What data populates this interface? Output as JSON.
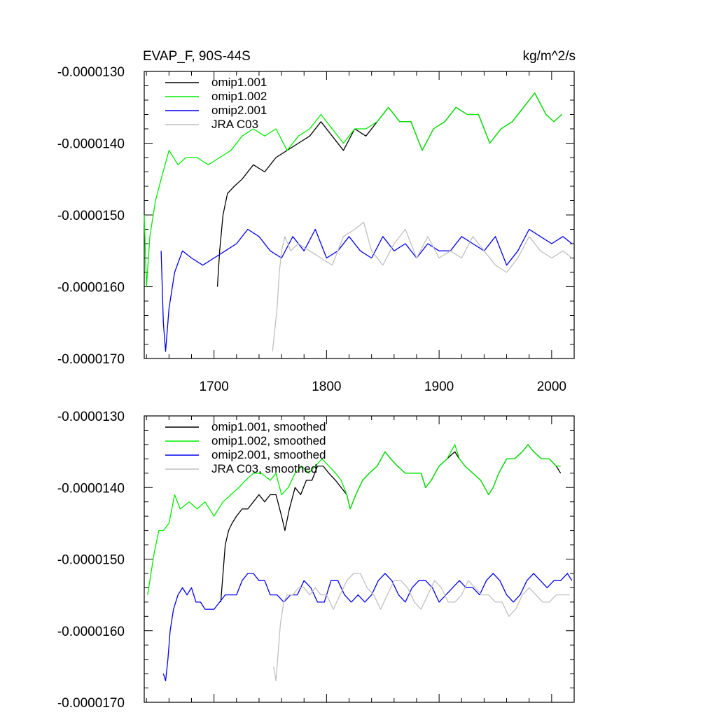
{
  "chart_data": [
    {
      "type": "line",
      "title": "EVAP_F, 90S-44S",
      "units": "kg/m^2/s",
      "ylim": [
        -1.7e-05,
        -1.3e-05
      ],
      "xlim": [
        1638,
        2020
      ],
      "y_ticks": [
        -1.3e-05,
        -1.4e-05,
        -1.5e-05,
        -1.6e-05,
        -1.7e-05
      ],
      "y_tick_labels": [
        "-0.0000130",
        "-0.0000140",
        "-0.0000150",
        "-0.0000160",
        "-0.0000170"
      ],
      "x_ticks": [
        1700,
        1800,
        1900,
        2000
      ],
      "x_tick_labels": [
        "1700",
        "1800",
        "1900",
        "2000"
      ],
      "legend_position": "top-left",
      "grid": false,
      "series": [
        {
          "name": "omip1.001",
          "color": "#000000",
          "x": [
            1703,
            1705,
            1708,
            1712,
            1718,
            1725,
            1735,
            1745,
            1755,
            1765,
            1775,
            1785,
            1795,
            1805,
            1815,
            1825,
            1835,
            1845,
            1855,
            1865,
            1875,
            1885,
            1895,
            1905,
            1915,
            1925,
            1935,
            1945,
            1955,
            1965,
            1975,
            1985,
            1995,
            2002,
            2009
          ],
          "y": [
            -1.6e-05,
            -1.55e-05,
            -1.5e-05,
            -1.47e-05,
            -1.46e-05,
            -1.45e-05,
            -1.43e-05,
            -1.44e-05,
            -1.42e-05,
            -1.41e-05,
            -1.4e-05,
            -1.39e-05,
            -1.37e-05,
            -1.39e-05,
            -1.41e-05,
            -1.38e-05,
            -1.39e-05,
            -1.37e-05,
            -1.35e-05,
            -1.37e-05,
            -1.37e-05,
            -1.41e-05,
            -1.38e-05,
            -1.37e-05,
            -1.35e-05,
            -1.36e-05,
            -1.36e-05,
            -1.4e-05,
            -1.38e-05,
            -1.37e-05,
            -1.35e-05,
            -1.33e-05,
            -1.36e-05,
            -1.37e-05,
            -1.36e-05
          ]
        },
        {
          "name": "omip1.002",
          "color": "#00ee00",
          "x": [
            1638,
            1640,
            1643,
            1648,
            1653,
            1660,
            1668,
            1675,
            1685,
            1695,
            1705,
            1715,
            1725,
            1735,
            1745,
            1755,
            1765,
            1775,
            1785,
            1795,
            1805,
            1815,
            1825,
            1835,
            1845,
            1855,
            1865,
            1875,
            1885,
            1895,
            1905,
            1915,
            1925,
            1935,
            1945,
            1955,
            1965,
            1975,
            1985,
            1995,
            2002,
            2009
          ],
          "y": [
            -1.5e-05,
            -1.6e-05,
            -1.53e-05,
            -1.48e-05,
            -1.45e-05,
            -1.41e-05,
            -1.43e-05,
            -1.42e-05,
            -1.42e-05,
            -1.43e-05,
            -1.42e-05,
            -1.41e-05,
            -1.39e-05,
            -1.38e-05,
            -1.39e-05,
            -1.38e-05,
            -1.41e-05,
            -1.39e-05,
            -1.38e-05,
            -1.36e-05,
            -1.38e-05,
            -1.4e-05,
            -1.38e-05,
            -1.38e-05,
            -1.37e-05,
            -1.35e-05,
            -1.37e-05,
            -1.37e-05,
            -1.41e-05,
            -1.38e-05,
            -1.37e-05,
            -1.35e-05,
            -1.36e-05,
            -1.36e-05,
            -1.4e-05,
            -1.38e-05,
            -1.37e-05,
            -1.35e-05,
            -1.33e-05,
            -1.36e-05,
            -1.37e-05,
            -1.36e-05
          ]
        },
        {
          "name": "omip2.001",
          "color": "#0000ee",
          "x": [
            1653,
            1655,
            1657,
            1660,
            1665,
            1672,
            1680,
            1690,
            1700,
            1710,
            1720,
            1730,
            1740,
            1750,
            1760,
            1770,
            1780,
            1790,
            1800,
            1810,
            1820,
            1830,
            1840,
            1850,
            1860,
            1870,
            1880,
            1890,
            1900,
            1910,
            1920,
            1930,
            1940,
            1950,
            1960,
            1970,
            1980,
            1990,
            2000,
            2010,
            2018
          ],
          "y": [
            -1.55e-05,
            -1.65e-05,
            -1.69e-05,
            -1.63e-05,
            -1.58e-05,
            -1.55e-05,
            -1.56e-05,
            -1.57e-05,
            -1.56e-05,
            -1.55e-05,
            -1.54e-05,
            -1.52e-05,
            -1.53e-05,
            -1.55e-05,
            -1.56e-05,
            -1.53e-05,
            -1.55e-05,
            -1.52e-05,
            -1.56e-05,
            -1.55e-05,
            -1.53e-05,
            -1.55e-05,
            -1.56e-05,
            -1.53e-05,
            -1.55e-05,
            -1.54e-05,
            -1.56e-05,
            -1.54e-05,
            -1.55e-05,
            -1.55e-05,
            -1.53e-05,
            -1.54e-05,
            -1.55e-05,
            -1.53e-05,
            -1.57e-05,
            -1.55e-05,
            -1.52e-05,
            -1.53e-05,
            -1.54e-05,
            -1.53e-05,
            -1.54e-05
          ]
        },
        {
          "name": "JRA C03",
          "color": "#c0c0c0",
          "x": [
            1752,
            1754,
            1756,
            1758,
            1760,
            1763,
            1768,
            1775,
            1785,
            1795,
            1805,
            1815,
            1825,
            1833,
            1840,
            1850,
            1860,
            1870,
            1880,
            1890,
            1900,
            1910,
            1920,
            1930,
            1940,
            1950,
            1960,
            1970,
            1980,
            1990,
            2000,
            2010,
            2018
          ],
          "y": [
            -1.69e-05,
            -1.66e-05,
            -1.63e-05,
            -1.58e-05,
            -1.55e-05,
            -1.53e-05,
            -1.55e-05,
            -1.54e-05,
            -1.55e-05,
            -1.56e-05,
            -1.57e-05,
            -1.53e-05,
            -1.52e-05,
            -1.51e-05,
            -1.55e-05,
            -1.57e-05,
            -1.54e-05,
            -1.52e-05,
            -1.56e-05,
            -1.53e-05,
            -1.56e-05,
            -1.55e-05,
            -1.56e-05,
            -1.53e-05,
            -1.55e-05,
            -1.57e-05,
            -1.58e-05,
            -1.56e-05,
            -1.53e-05,
            -1.55e-05,
            -1.56e-05,
            -1.55e-05,
            -1.56e-05
          ]
        }
      ]
    },
    {
      "type": "line",
      "title": "",
      "ylim": [
        -1.7e-05,
        -1.3e-05
      ],
      "xlim": [
        1638,
        2020
      ],
      "y_ticks": [
        -1.3e-05,
        -1.4e-05,
        -1.5e-05,
        -1.6e-05,
        -1.7e-05
      ],
      "y_tick_labels": [
        "-0.0000130",
        "-0.0000140",
        "-0.0000150",
        "-0.0000160",
        "-0.0000170"
      ],
      "x_ticks": [
        1700,
        1800,
        1900,
        2000
      ],
      "x_tick_labels": [],
      "legend_position": "top-left",
      "grid": false,
      "series": [
        {
          "name": "omip1.001, smoothed",
          "color": "#000000",
          "x": [
            1706,
            1708,
            1710,
            1713,
            1716,
            1720,
            1725,
            1730,
            1735,
            1740,
            1745,
            1750,
            1755,
            1760,
            1763,
            1767,
            1772,
            1777,
            1782,
            1787,
            1792,
            1797,
            1802,
            1808,
            1813,
            1818,
            1821,
            1826,
            1832,
            1838,
            1845,
            1852,
            1857,
            1863,
            1870,
            1877,
            1884,
            1888,
            1893,
            1900,
            1907,
            1914,
            1918,
            1923,
            1930,
            1937,
            1944,
            1948,
            1953,
            1960,
            1967,
            1974,
            1979,
            1984,
            1991,
            1998,
            2004,
            2008
          ],
          "y": [
            -1.56e-05,
            -1.52e-05,
            -1.48e-05,
            -1.46e-05,
            -1.45e-05,
            -1.44e-05,
            -1.43e-05,
            -1.43e-05,
            -1.42e-05,
            -1.41e-05,
            -1.42e-05,
            -1.41e-05,
            -1.41e-05,
            -1.44e-05,
            -1.46e-05,
            -1.43e-05,
            -1.4e-05,
            -1.41e-05,
            -1.39e-05,
            -1.39e-05,
            -1.37e-05,
            -1.37e-05,
            -1.38e-05,
            -1.39e-05,
            -1.4e-05,
            -1.41e-05,
            -1.43e-05,
            -1.41e-05,
            -1.39e-05,
            -1.38e-05,
            -1.37e-05,
            -1.35e-05,
            -1.36e-05,
            -1.37e-05,
            -1.38e-05,
            -1.38e-05,
            -1.38e-05,
            -1.4e-05,
            -1.39e-05,
            -1.37e-05,
            -1.36e-05,
            -1.35e-05,
            -1.36e-05,
            -1.37e-05,
            -1.38e-05,
            -1.39e-05,
            -1.41e-05,
            -1.4e-05,
            -1.38e-05,
            -1.36e-05,
            -1.36e-05,
            -1.35e-05,
            -1.34e-05,
            -1.35e-05,
            -1.36e-05,
            -1.36e-05,
            -1.37e-05,
            -1.38e-05
          ]
        },
        {
          "name": "omip1.002, smoothed",
          "color": "#00ee00",
          "x": [
            1641,
            1644,
            1647,
            1651,
            1655,
            1660,
            1665,
            1670,
            1678,
            1685,
            1692,
            1700,
            1708,
            1715,
            1722,
            1728,
            1735,
            1742,
            1750,
            1755,
            1760,
            1766,
            1772,
            1778,
            1784,
            1790,
            1796,
            1802,
            1808,
            1813,
            1818,
            1821,
            1826,
            1832,
            1838,
            1845,
            1852,
            1857,
            1863,
            1870,
            1877,
            1884,
            1888,
            1893,
            1900,
            1907,
            1914,
            1918,
            1923,
            1930,
            1937,
            1944,
            1948,
            1953,
            1960,
            1967,
            1974,
            1979,
            1984,
            1991,
            1998,
            2004,
            2008
          ],
          "y": [
            -1.55e-05,
            -1.52e-05,
            -1.49e-05,
            -1.46e-05,
            -1.46e-05,
            -1.45e-05,
            -1.41e-05,
            -1.43e-05,
            -1.42e-05,
            -1.43e-05,
            -1.42e-05,
            -1.44e-05,
            -1.42e-05,
            -1.41e-05,
            -1.4e-05,
            -1.39e-05,
            -1.38e-05,
            -1.38e-05,
            -1.39e-05,
            -1.38e-05,
            -1.41e-05,
            -1.4e-05,
            -1.38e-05,
            -1.37e-05,
            -1.38e-05,
            -1.37e-05,
            -1.36e-05,
            -1.37e-05,
            -1.38e-05,
            -1.39e-05,
            -1.41e-05,
            -1.43e-05,
            -1.41e-05,
            -1.39e-05,
            -1.38e-05,
            -1.37e-05,
            -1.35e-05,
            -1.36e-05,
            -1.37e-05,
            -1.38e-05,
            -1.38e-05,
            -1.38e-05,
            -1.4e-05,
            -1.39e-05,
            -1.37e-05,
            -1.36e-05,
            -1.34e-05,
            -1.36e-05,
            -1.37e-05,
            -1.38e-05,
            -1.39e-05,
            -1.41e-05,
            -1.4e-05,
            -1.38e-05,
            -1.36e-05,
            -1.36e-05,
            -1.35e-05,
            -1.34e-05,
            -1.35e-05,
            -1.36e-05,
            -1.36e-05,
            -1.37e-05,
            -1.37e-05
          ]
        },
        {
          "name": "omip2.001, smoothed",
          "color": "#0000ee",
          "x": [
            1655,
            1657,
            1659,
            1661,
            1664,
            1668,
            1672,
            1676,
            1680,
            1684,
            1688,
            1692,
            1696,
            1700,
            1705,
            1710,
            1715,
            1720,
            1725,
            1730,
            1735,
            1740,
            1745,
            1750,
            1756,
            1762,
            1768,
            1774,
            1780,
            1786,
            1792,
            1798,
            1804,
            1810,
            1816,
            1822,
            1828,
            1834,
            1840,
            1846,
            1852,
            1858,
            1864,
            1870,
            1876,
            1882,
            1888,
            1894,
            1900,
            1906,
            1912,
            1918,
            1924,
            1930,
            1936,
            1942,
            1948,
            1954,
            1960,
            1966,
            1972,
            1978,
            1984,
            1990,
            1996,
            2002,
            2008,
            2014,
            2018
          ],
          "y": [
            -1.66e-05,
            -1.67e-05,
            -1.64e-05,
            -1.6e-05,
            -1.57e-05,
            -1.55e-05,
            -1.54e-05,
            -1.55e-05,
            -1.54e-05,
            -1.56e-05,
            -1.56e-05,
            -1.57e-05,
            -1.57e-05,
            -1.57e-05,
            -1.56e-05,
            -1.55e-05,
            -1.55e-05,
            -1.55e-05,
            -1.53e-05,
            -1.52e-05,
            -1.52e-05,
            -1.53e-05,
            -1.53e-05,
            -1.55e-05,
            -1.55e-05,
            -1.56e-05,
            -1.55e-05,
            -1.55e-05,
            -1.53e-05,
            -1.54e-05,
            -1.56e-05,
            -1.56e-05,
            -1.53e-05,
            -1.53e-05,
            -1.55e-05,
            -1.56e-05,
            -1.55e-05,
            -1.56e-05,
            -1.55e-05,
            -1.53e-05,
            -1.52e-05,
            -1.53e-05,
            -1.55e-05,
            -1.56e-05,
            -1.54e-05,
            -1.53e-05,
            -1.53e-05,
            -1.54e-05,
            -1.56e-05,
            -1.55e-05,
            -1.54e-05,
            -1.53e-05,
            -1.54e-05,
            -1.54e-05,
            -1.55e-05,
            -1.53e-05,
            -1.52e-05,
            -1.53e-05,
            -1.55e-05,
            -1.56e-05,
            -1.55e-05,
            -1.53e-05,
            -1.52e-05,
            -1.53e-05,
            -1.54e-05,
            -1.53e-05,
            -1.53e-05,
            -1.52e-05,
            -1.53e-05
          ]
        },
        {
          "name": "JRA C03, smoothed",
          "color": "#c0c0c0",
          "x": [
            1753,
            1755,
            1757,
            1759,
            1762,
            1765,
            1770,
            1775,
            1780,
            1785,
            1790,
            1795,
            1800,
            1806,
            1812,
            1818,
            1824,
            1830,
            1836,
            1842,
            1848,
            1854,
            1860,
            1866,
            1872,
            1878,
            1884,
            1890,
            1896,
            1902,
            1908,
            1914,
            1920,
            1926,
            1932,
            1938,
            1944,
            1950,
            1956,
            1962,
            1968,
            1974,
            1980,
            1986,
            1992,
            1998,
            2004,
            2010,
            2016
          ],
          "y": [
            -1.65e-05,
            -1.67e-05,
            -1.63e-05,
            -1.59e-05,
            -1.56e-05,
            -1.55e-05,
            -1.55e-05,
            -1.54e-05,
            -1.54e-05,
            -1.55e-05,
            -1.54e-05,
            -1.55e-05,
            -1.55e-05,
            -1.57e-05,
            -1.55e-05,
            -1.53e-05,
            -1.52e-05,
            -1.52e-05,
            -1.54e-05,
            -1.55e-05,
            -1.57e-05,
            -1.55e-05,
            -1.53e-05,
            -1.53e-05,
            -1.54e-05,
            -1.56e-05,
            -1.57e-05,
            -1.55e-05,
            -1.53e-05,
            -1.54e-05,
            -1.56e-05,
            -1.56e-05,
            -1.55e-05,
            -1.53e-05,
            -1.54e-05,
            -1.55e-05,
            -1.55e-05,
            -1.56e-05,
            -1.56e-05,
            -1.58e-05,
            -1.57e-05,
            -1.55e-05,
            -1.54e-05,
            -1.55e-05,
            -1.56e-05,
            -1.56e-05,
            -1.55e-05,
            -1.55e-05,
            -1.55e-05
          ]
        }
      ]
    }
  ]
}
